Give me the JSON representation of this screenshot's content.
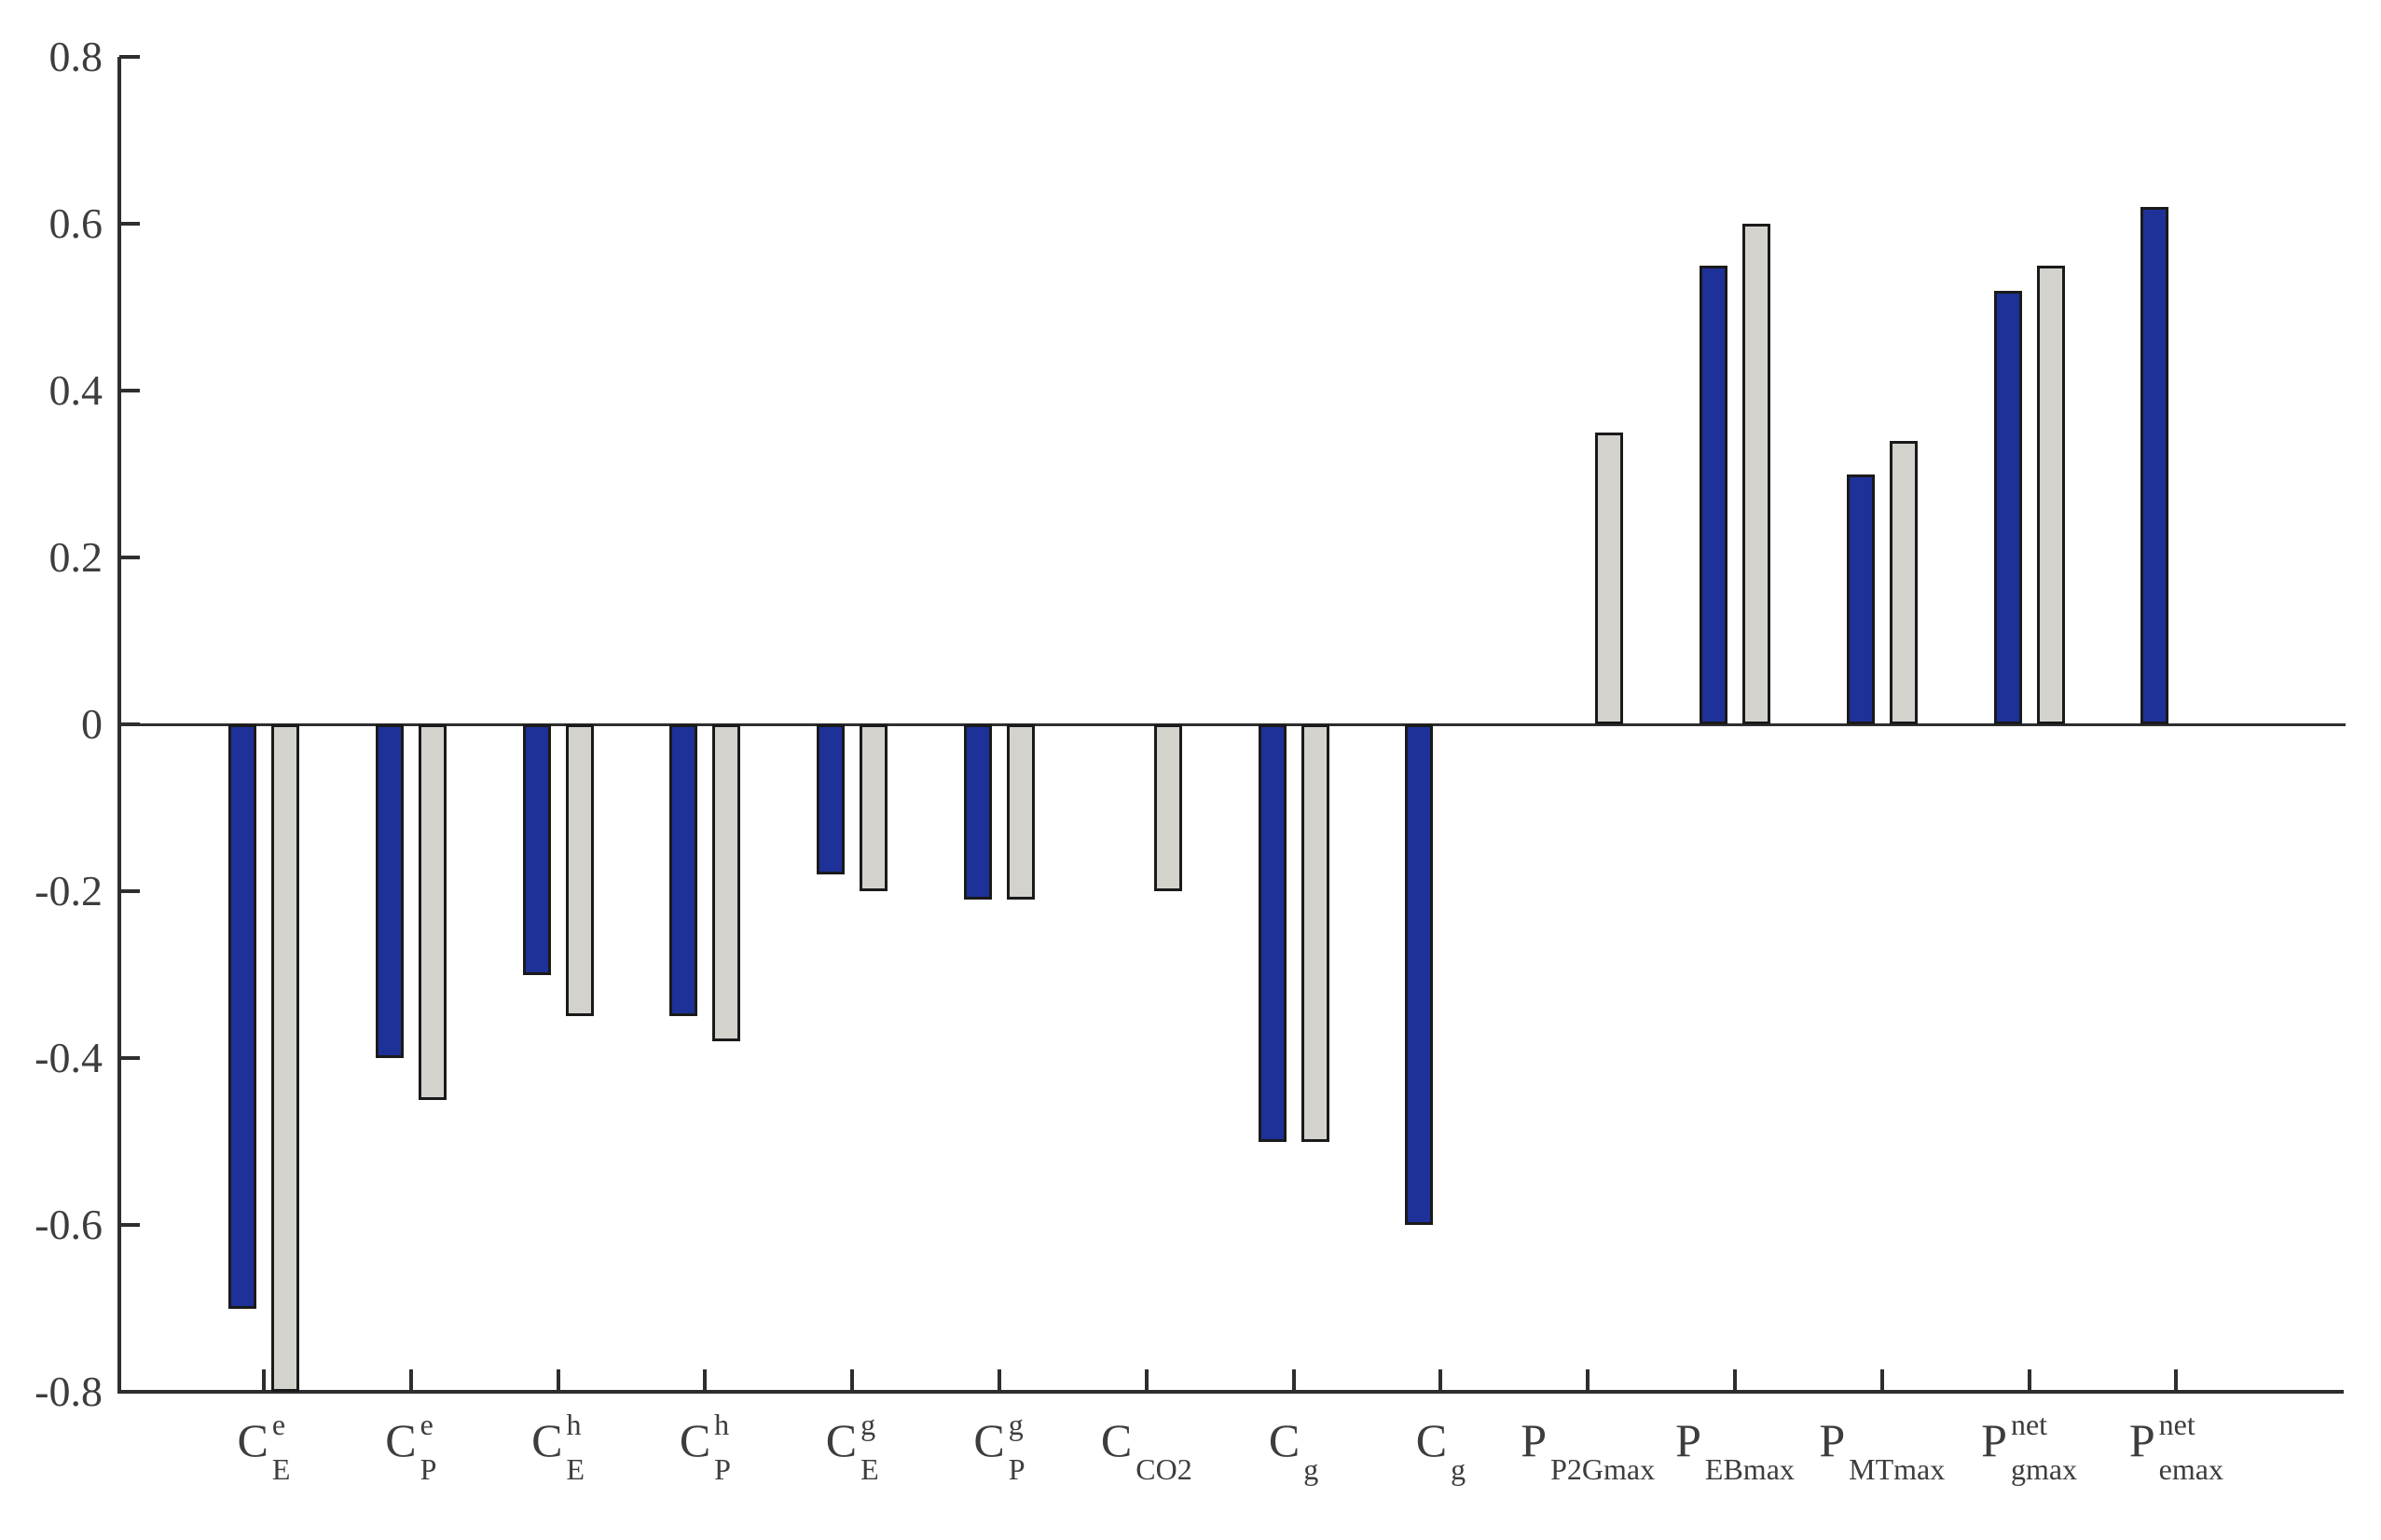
{
  "figure": {
    "background": "#ffffff",
    "axis_color": "#2e2e2e",
    "text_color": "#3d3d3d"
  },
  "chart_data": {
    "type": "bar",
    "title": "",
    "xlabel": "",
    "ylabel": "",
    "ylim": [
      -0.8,
      0.8
    ],
    "grid": false,
    "legend": null,
    "yticks": [
      0.8,
      0.6,
      0.4,
      0.2,
      0,
      -0.2,
      -0.4,
      -0.6,
      -0.8
    ],
    "ytick_labels": [
      "0.8",
      "0.6",
      "0.4",
      "0.2",
      "0",
      "-0.2",
      "-0.4",
      "-0.6",
      "-0.8"
    ],
    "categories": [
      {
        "label": "C_E^e",
        "base": "C",
        "sup": "e",
        "sub": "E"
      },
      {
        "label": "C_P^e",
        "base": "C",
        "sup": "e",
        "sub": "P"
      },
      {
        "label": "C_E^h",
        "base": "C",
        "sup": "h",
        "sub": "E"
      },
      {
        "label": "C_P^h",
        "base": "C",
        "sup": "h",
        "sub": "P"
      },
      {
        "label": "C_E^g",
        "base": "C",
        "sup": "g",
        "sub": "E"
      },
      {
        "label": "C_P^g",
        "base": "C",
        "sup": "g",
        "sub": "P"
      },
      {
        "label": "C_CO2",
        "base": "C",
        "sup": "",
        "sub": "CO2"
      },
      {
        "label": "C_g",
        "base": "C",
        "sup": "",
        "sub": "g"
      },
      {
        "label": "C_g",
        "base": "C",
        "sup": "",
        "sub": "g"
      },
      {
        "label": "P_P2Gmax",
        "base": "P",
        "sup": "",
        "sub": "P2Gmax"
      },
      {
        "label": "P_EBmax",
        "base": "P",
        "sup": "",
        "sub": "EBmax"
      },
      {
        "label": "P_MTmax",
        "base": "P",
        "sup": "",
        "sub": "MTmax"
      },
      {
        "label": "P_gmax^net",
        "base": "P",
        "sup": "net",
        "sub": "gmax"
      },
      {
        "label": "P_emax^net",
        "base": "P",
        "sup": "net",
        "sub": "emax"
      }
    ],
    "series": [
      {
        "name": "blue",
        "color": "#1e3199",
        "values": [
          -0.7,
          -0.4,
          -0.3,
          -0.35,
          -0.18,
          -0.21,
          null,
          -0.5,
          -0.6,
          null,
          0.55,
          0.3,
          0.52,
          0.62
        ]
      },
      {
        "name": "gray",
        "color": "#d4d2cc",
        "values": [
          -0.8,
          -0.45,
          -0.35,
          -0.38,
          -0.2,
          -0.21,
          -0.2,
          -0.5,
          null,
          0.35,
          0.6,
          0.34,
          0.55,
          null
        ]
      }
    ]
  }
}
